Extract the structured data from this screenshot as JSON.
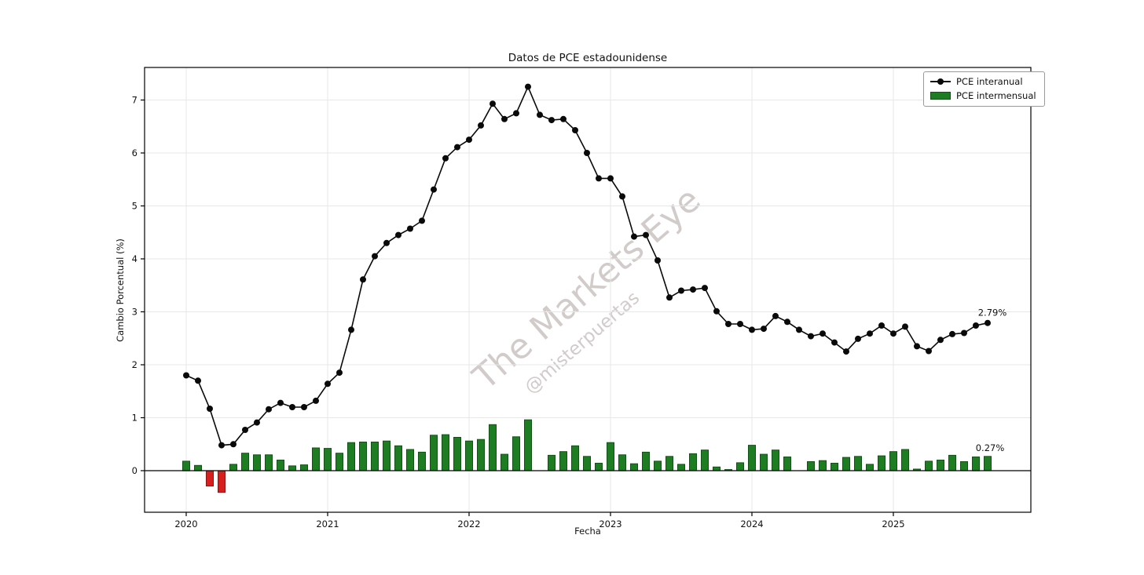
{
  "title": "Datos de PCE estadounidense",
  "axes": {
    "xlabel": "Fecha",
    "ylabel": "Cambio Porcentual (%)",
    "x_ticks": [
      "2020",
      "2021",
      "2022",
      "2023",
      "2024",
      "2025"
    ],
    "y_ticks": [
      "0",
      "1",
      "2",
      "3",
      "4",
      "5",
      "6",
      "7"
    ]
  },
  "legend": {
    "items": [
      {
        "label": "PCE interanual",
        "glyph": "line-with-marker"
      },
      {
        "label": "PCE intermensual",
        "glyph": "bar-swatch"
      }
    ]
  },
  "annotations": {
    "line_end_label": "2.79%",
    "bar_end_label": "0.27%"
  },
  "watermark": {
    "main": "The Markets Eye",
    "handle": "@misterpuertas"
  },
  "colors": {
    "line": "#0a0a0a",
    "bar_positive": "#1e7d23",
    "bar_positive_edge": "#135216",
    "bar_negative": "#d81f1f",
    "bar_negative_edge": "#8e1212",
    "grid": "#e7e7e7",
    "spine": "#000000",
    "tick_text": "#111111",
    "watermark": "#a39a94"
  },
  "chart_data": {
    "type": "mixed",
    "title": "Datos de PCE estadounidense",
    "xlabel": "Fecha",
    "ylabel": "Cambio Porcentual (%)",
    "grid": true,
    "legend_position": "upper right",
    "ylim": [
      -0.79,
      7.59
    ],
    "x": [
      "2020-01",
      "2020-02",
      "2020-03",
      "2020-04",
      "2020-05",
      "2020-06",
      "2020-07",
      "2020-08",
      "2020-09",
      "2020-10",
      "2020-11",
      "2020-12",
      "2021-01",
      "2021-02",
      "2021-03",
      "2021-04",
      "2021-05",
      "2021-06",
      "2021-07",
      "2021-08",
      "2021-09",
      "2021-10",
      "2021-11",
      "2021-12",
      "2022-01",
      "2022-02",
      "2022-03",
      "2022-04",
      "2022-05",
      "2022-06",
      "2022-07",
      "2022-08",
      "2022-09",
      "2022-10",
      "2022-11",
      "2022-12",
      "2023-01",
      "2023-02",
      "2023-03",
      "2023-04",
      "2023-05",
      "2023-06",
      "2023-07",
      "2023-08",
      "2023-09",
      "2023-10",
      "2023-11",
      "2023-12",
      "2024-01",
      "2024-02",
      "2024-03",
      "2024-04",
      "2024-05",
      "2024-06",
      "2024-07",
      "2024-08",
      "2024-09",
      "2024-10",
      "2024-11",
      "2024-12",
      "2025-01",
      "2025-02",
      "2025-03",
      "2025-04",
      "2025-05",
      "2025-06",
      "2025-07",
      "2025-08",
      "2025-09"
    ],
    "series": [
      {
        "name": "PCE interanual",
        "type": "line",
        "values": [
          1.8,
          1.7,
          1.17,
          0.48,
          0.5,
          0.77,
          0.91,
          1.16,
          1.28,
          1.2,
          1.2,
          1.32,
          1.64,
          1.85,
          2.66,
          3.61,
          4.05,
          4.3,
          4.45,
          4.57,
          4.72,
          5.31,
          5.9,
          6.11,
          6.25,
          6.52,
          6.93,
          6.64,
          6.75,
          7.25,
          6.72,
          6.62,
          6.64,
          6.43,
          6.0,
          5.52,
          5.52,
          5.18,
          4.42,
          4.45,
          3.97,
          3.27,
          3.4,
          3.42,
          3.45,
          3.01,
          2.77,
          2.77,
          2.66,
          2.68,
          2.92,
          2.81,
          2.66,
          2.54,
          2.59,
          2.42,
          2.25,
          2.49,
          2.59,
          2.74,
          2.59,
          2.72,
          2.35,
          2.26,
          2.47,
          2.58,
          2.6,
          2.74,
          2.79
        ]
      },
      {
        "name": "PCE intermensual",
        "type": "bar",
        "values": [
          0.18,
          0.1,
          -0.29,
          -0.41,
          0.12,
          0.33,
          0.3,
          0.3,
          0.2,
          0.09,
          0.11,
          0.43,
          0.42,
          0.33,
          0.53,
          0.54,
          0.54,
          0.56,
          0.47,
          0.4,
          0.35,
          0.67,
          0.68,
          0.63,
          0.56,
          0.59,
          0.87,
          0.31,
          0.64,
          0.96,
          0.0,
          0.29,
          0.36,
          0.47,
          0.27,
          0.14,
          0.53,
          0.3,
          0.13,
          0.35,
          0.18,
          0.27,
          0.12,
          0.32,
          0.39,
          0.07,
          0.02,
          0.15,
          0.48,
          0.31,
          0.39,
          0.26,
          0.0,
          0.17,
          0.19,
          0.14,
          0.25,
          0.27,
          0.12,
          0.28,
          0.36,
          0.4,
          0.03,
          0.18,
          0.2,
          0.29,
          0.17,
          0.26,
          0.27
        ]
      }
    ],
    "end_labels": {
      "line": "2.79%",
      "bar": "0.27%"
    }
  }
}
